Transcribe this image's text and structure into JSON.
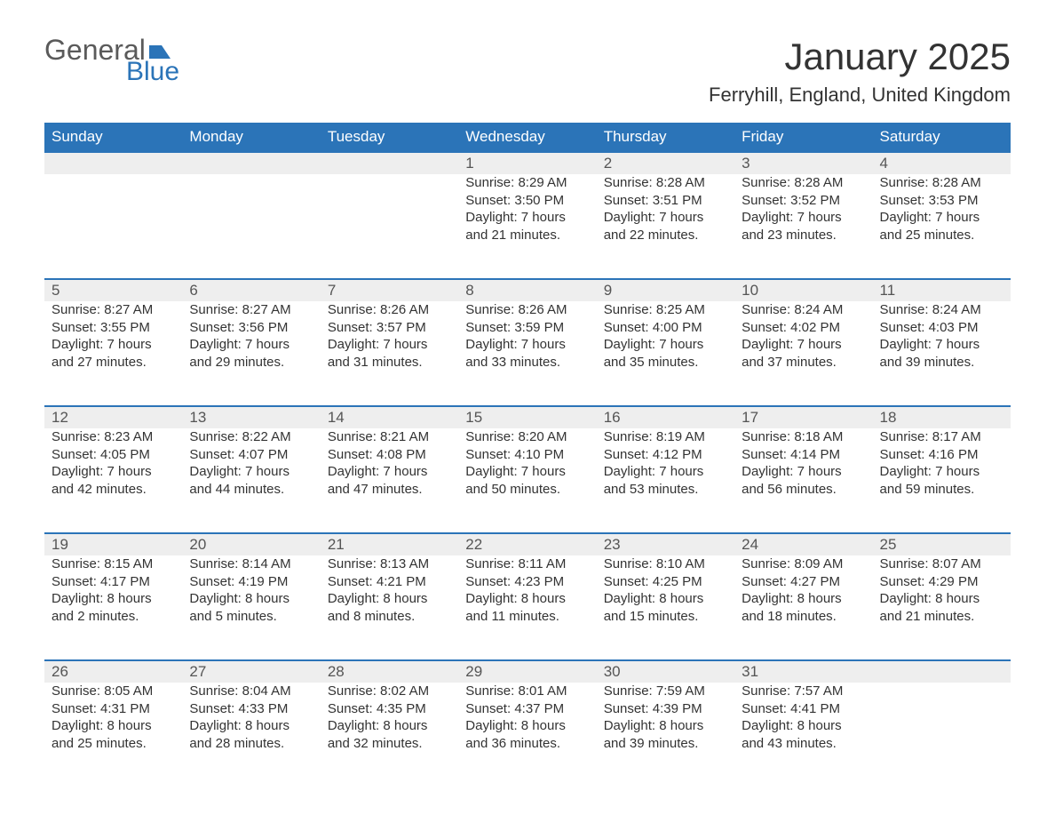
{
  "logo": {
    "word1": "General",
    "word2": "Blue",
    "flag_color": "#2b74b8",
    "word1_color": "#5a5a5a",
    "word2_color": "#2b74b8"
  },
  "title": "January 2025",
  "location": "Ferryhill, England, United Kingdom",
  "colors": {
    "header_bg": "#2b74b8",
    "header_text": "#ffffff",
    "daynum_bg": "#eeeeee",
    "daynum_border": "#2b74b8",
    "body_text": "#333333",
    "background": "#ffffff"
  },
  "typography": {
    "title_fontsize": 42,
    "location_fontsize": 22,
    "weekday_fontsize": 17,
    "daynum_fontsize": 17,
    "cell_fontsize": 15,
    "font_family": "Arial"
  },
  "layout": {
    "columns": 7,
    "rows": 5,
    "first_weekday": "Sunday"
  },
  "weekdays": [
    "Sunday",
    "Monday",
    "Tuesday",
    "Wednesday",
    "Thursday",
    "Friday",
    "Saturday"
  ],
  "labels": {
    "sunrise": "Sunrise:",
    "sunset": "Sunset:",
    "daylight": "Daylight:"
  },
  "weeks": [
    [
      null,
      null,
      null,
      {
        "day": "1",
        "sunrise": "8:29 AM",
        "sunset": "3:50 PM",
        "daylight": "7 hours and 21 minutes."
      },
      {
        "day": "2",
        "sunrise": "8:28 AM",
        "sunset": "3:51 PM",
        "daylight": "7 hours and 22 minutes."
      },
      {
        "day": "3",
        "sunrise": "8:28 AM",
        "sunset": "3:52 PM",
        "daylight": "7 hours and 23 minutes."
      },
      {
        "day": "4",
        "sunrise": "8:28 AM",
        "sunset": "3:53 PM",
        "daylight": "7 hours and 25 minutes."
      }
    ],
    [
      {
        "day": "5",
        "sunrise": "8:27 AM",
        "sunset": "3:55 PM",
        "daylight": "7 hours and 27 minutes."
      },
      {
        "day": "6",
        "sunrise": "8:27 AM",
        "sunset": "3:56 PM",
        "daylight": "7 hours and 29 minutes."
      },
      {
        "day": "7",
        "sunrise": "8:26 AM",
        "sunset": "3:57 PM",
        "daylight": "7 hours and 31 minutes."
      },
      {
        "day": "8",
        "sunrise": "8:26 AM",
        "sunset": "3:59 PM",
        "daylight": "7 hours and 33 minutes."
      },
      {
        "day": "9",
        "sunrise": "8:25 AM",
        "sunset": "4:00 PM",
        "daylight": "7 hours and 35 minutes."
      },
      {
        "day": "10",
        "sunrise": "8:24 AM",
        "sunset": "4:02 PM",
        "daylight": "7 hours and 37 minutes."
      },
      {
        "day": "11",
        "sunrise": "8:24 AM",
        "sunset": "4:03 PM",
        "daylight": "7 hours and 39 minutes."
      }
    ],
    [
      {
        "day": "12",
        "sunrise": "8:23 AM",
        "sunset": "4:05 PM",
        "daylight": "7 hours and 42 minutes."
      },
      {
        "day": "13",
        "sunrise": "8:22 AM",
        "sunset": "4:07 PM",
        "daylight": "7 hours and 44 minutes."
      },
      {
        "day": "14",
        "sunrise": "8:21 AM",
        "sunset": "4:08 PM",
        "daylight": "7 hours and 47 minutes."
      },
      {
        "day": "15",
        "sunrise": "8:20 AM",
        "sunset": "4:10 PM",
        "daylight": "7 hours and 50 minutes."
      },
      {
        "day": "16",
        "sunrise": "8:19 AM",
        "sunset": "4:12 PM",
        "daylight": "7 hours and 53 minutes."
      },
      {
        "day": "17",
        "sunrise": "8:18 AM",
        "sunset": "4:14 PM",
        "daylight": "7 hours and 56 minutes."
      },
      {
        "day": "18",
        "sunrise": "8:17 AM",
        "sunset": "4:16 PM",
        "daylight": "7 hours and 59 minutes."
      }
    ],
    [
      {
        "day": "19",
        "sunrise": "8:15 AM",
        "sunset": "4:17 PM",
        "daylight": "8 hours and 2 minutes."
      },
      {
        "day": "20",
        "sunrise": "8:14 AM",
        "sunset": "4:19 PM",
        "daylight": "8 hours and 5 minutes."
      },
      {
        "day": "21",
        "sunrise": "8:13 AM",
        "sunset": "4:21 PM",
        "daylight": "8 hours and 8 minutes."
      },
      {
        "day": "22",
        "sunrise": "8:11 AM",
        "sunset": "4:23 PM",
        "daylight": "8 hours and 11 minutes."
      },
      {
        "day": "23",
        "sunrise": "8:10 AM",
        "sunset": "4:25 PM",
        "daylight": "8 hours and 15 minutes."
      },
      {
        "day": "24",
        "sunrise": "8:09 AM",
        "sunset": "4:27 PM",
        "daylight": "8 hours and 18 minutes."
      },
      {
        "day": "25",
        "sunrise": "8:07 AM",
        "sunset": "4:29 PM",
        "daylight": "8 hours and 21 minutes."
      }
    ],
    [
      {
        "day": "26",
        "sunrise": "8:05 AM",
        "sunset": "4:31 PM",
        "daylight": "8 hours and 25 minutes."
      },
      {
        "day": "27",
        "sunrise": "8:04 AM",
        "sunset": "4:33 PM",
        "daylight": "8 hours and 28 minutes."
      },
      {
        "day": "28",
        "sunrise": "8:02 AM",
        "sunset": "4:35 PM",
        "daylight": "8 hours and 32 minutes."
      },
      {
        "day": "29",
        "sunrise": "8:01 AM",
        "sunset": "4:37 PM",
        "daylight": "8 hours and 36 minutes."
      },
      {
        "day": "30",
        "sunrise": "7:59 AM",
        "sunset": "4:39 PM",
        "daylight": "8 hours and 39 minutes."
      },
      {
        "day": "31",
        "sunrise": "7:57 AM",
        "sunset": "4:41 PM",
        "daylight": "8 hours and 43 minutes."
      },
      null
    ]
  ]
}
